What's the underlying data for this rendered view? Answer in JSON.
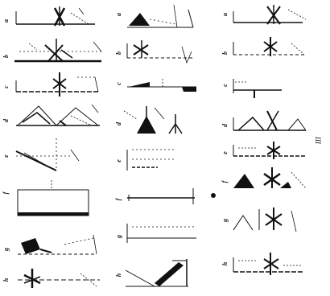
{
  "page_number": "III",
  "columns": [
    {
      "id": "left",
      "panels": [
        {
          "label": "a"
        },
        {
          "label": "b"
        },
        {
          "label": "c"
        },
        {
          "label": "d"
        },
        {
          "label": "e"
        },
        {
          "label": "f"
        },
        {
          "label": "g"
        },
        {
          "label": "h"
        }
      ]
    },
    {
      "id": "middle",
      "panels": [
        {
          "label": "a"
        },
        {
          "label": "b"
        },
        {
          "label": "c"
        },
        {
          "label": "d"
        },
        {
          "label": "e"
        },
        {
          "label": "f"
        },
        {
          "label": "g"
        },
        {
          "label": "h"
        }
      ]
    },
    {
      "id": "right",
      "panels": [
        {
          "label": "a"
        },
        {
          "label": "b"
        },
        {
          "label": "c"
        },
        {
          "label": "d"
        },
        {
          "label": "e"
        },
        {
          "label": "f"
        },
        {
          "label": "g"
        },
        {
          "label": "h"
        }
      ]
    }
  ],
  "colors": {
    "ink": "#111111",
    "paper": "#ffffff"
  }
}
